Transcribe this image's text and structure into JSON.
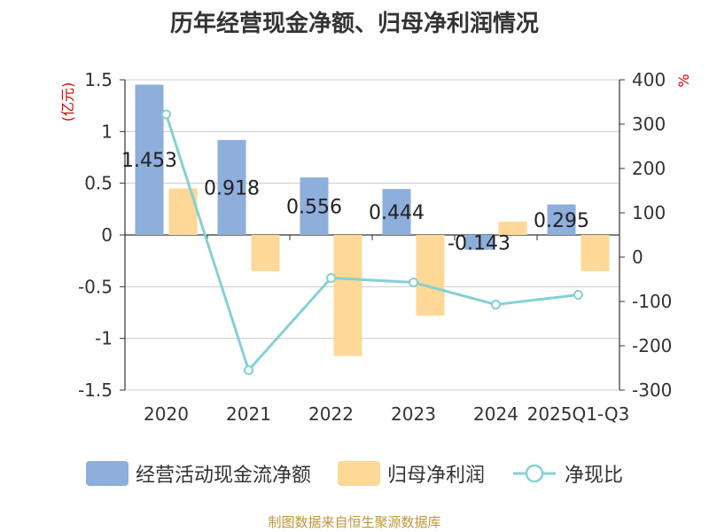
{
  "chart_data": {
    "type": "bar+line",
    "title": "历年经营现金净额、归母净利润情况",
    "categories": [
      "2020",
      "2021",
      "2022",
      "2023",
      "2024",
      "2025Q1-Q3"
    ],
    "series": [
      {
        "name": "经营活动现金流净额",
        "type": "bar",
        "axis": "left",
        "color": "#8eaedc",
        "values": [
          1.453,
          0.918,
          0.556,
          0.444,
          -0.143,
          0.295
        ]
      },
      {
        "name": "归母净利润",
        "type": "bar",
        "axis": "left",
        "color": "#fdd897",
        "values": [
          0.45,
          -0.35,
          -1.17,
          -0.78,
          0.13,
          -0.35
        ]
      },
      {
        "name": "净现比",
        "type": "line",
        "axis": "right",
        "color": "#86d0d4",
        "values": [
          322,
          -255,
          -47,
          -57,
          -107,
          -85
        ]
      }
    ],
    "data_labels": [
      "1.453",
      "0.918",
      "0.556",
      "0.444",
      "-0.143",
      "0.295"
    ],
    "y_left": {
      "label": "(亿元)",
      "ticks": [
        1.5,
        1,
        0.5,
        0,
        -0.5,
        -1,
        -1.5
      ],
      "tick_labels": [
        "1.5",
        "1",
        "0.5",
        "0",
        "-0.5",
        "-1",
        "-1.5"
      ],
      "min": -1.5,
      "max": 1.5
    },
    "y_right": {
      "label": "%",
      "ticks": [
        400,
        300,
        200,
        100,
        0,
        -100,
        -200,
        -300
      ],
      "tick_labels": [
        "400",
        "300",
        "200",
        "100",
        "0",
        "-100",
        "-200",
        "-300"
      ],
      "min": -300,
      "max": 400
    },
    "legend": [
      "经营活动现金流净额",
      "归母净利润",
      "净现比"
    ],
    "source": "制图数据来自恒生聚源数据库"
  }
}
